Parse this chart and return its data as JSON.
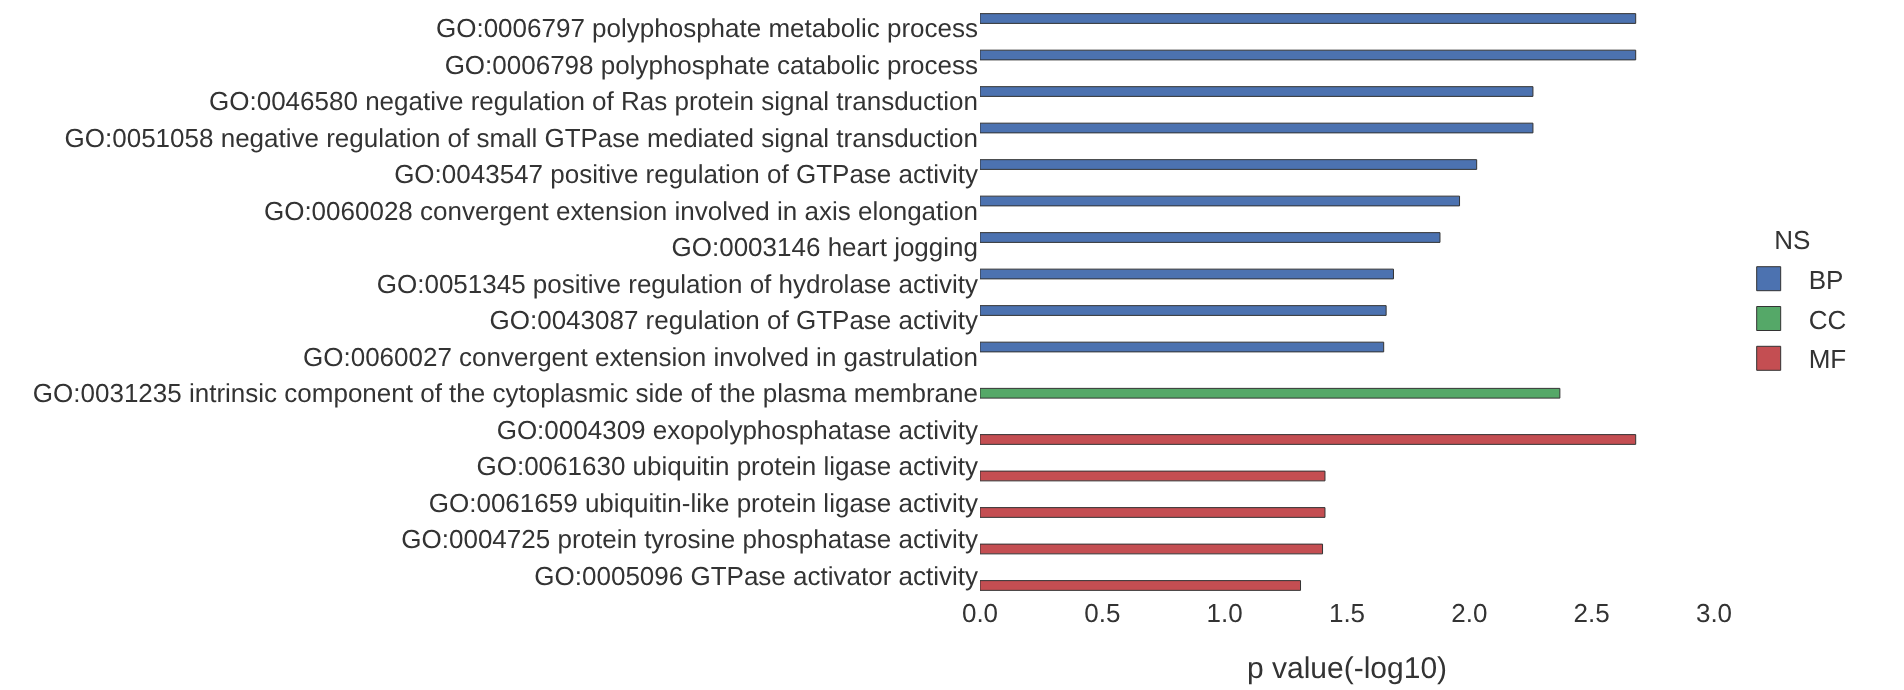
{
  "chart_data": {
    "type": "bar",
    "orientation": "horizontal",
    "xlabel": "p value(-log10)",
    "legend_title": "NS",
    "legend": "right",
    "categories": [
      "GO:0006797 polyphosphate metabolic process",
      "GO:0006798 polyphosphate catabolic process",
      "GO:0046580 negative regulation of Ras protein signal transduction",
      "GO:0051058 negative regulation of small GTPase mediated signal transduction",
      "GO:0043547 positive regulation of GTPase activity",
      "GO:0060028 convergent extension involved in axis elongation",
      "GO:0003146 heart jogging",
      "GO:0051345 positive regulation of hydrolase activity",
      "GO:0043087 regulation of GTPase activity",
      "GO:0060027 convergent extension involved in gastrulation",
      "GO:0031235 intrinsic component of the cytoplasmic side of the plasma membrane",
      "GO:0004309 exopolyphosphatase activity",
      "GO:0061630 ubiquitin protein ligase activity",
      "GO:0061659 ubiquitin-like protein ligase activity",
      "GO:0004725 protein tyrosine phosphatase activity",
      "GO:0005096 GTPase activator activity"
    ],
    "series": [
      {
        "name": "BP",
        "color": "#4c72b0",
        "values": [
          2.68,
          2.68,
          2.26,
          2.26,
          2.03,
          1.96,
          1.88,
          1.69,
          1.66,
          1.65,
          null,
          null,
          null,
          null,
          null,
          null
        ]
      },
      {
        "name": "CC",
        "color": "#55a868",
        "values": [
          null,
          null,
          null,
          null,
          null,
          null,
          null,
          null,
          null,
          null,
          2.37,
          null,
          null,
          null,
          null,
          null
        ]
      },
      {
        "name": "MF",
        "color": "#c44e52",
        "values": [
          null,
          null,
          null,
          null,
          null,
          null,
          null,
          null,
          null,
          null,
          null,
          2.68,
          1.41,
          1.41,
          1.4,
          1.31
        ]
      }
    ],
    "xlim": [
      0,
      3.0
    ],
    "xticks": [
      {
        "value": 0,
        "label": "0.0"
      },
      {
        "value": 0.5,
        "label": "0.5"
      },
      {
        "value": 1,
        "label": "1.0"
      },
      {
        "value": 1.5,
        "label": "1.5"
      },
      {
        "value": 2,
        "label": "2.0"
      },
      {
        "value": 2.5,
        "label": "2.5"
      },
      {
        "value": 3,
        "label": "3.0"
      }
    ]
  }
}
